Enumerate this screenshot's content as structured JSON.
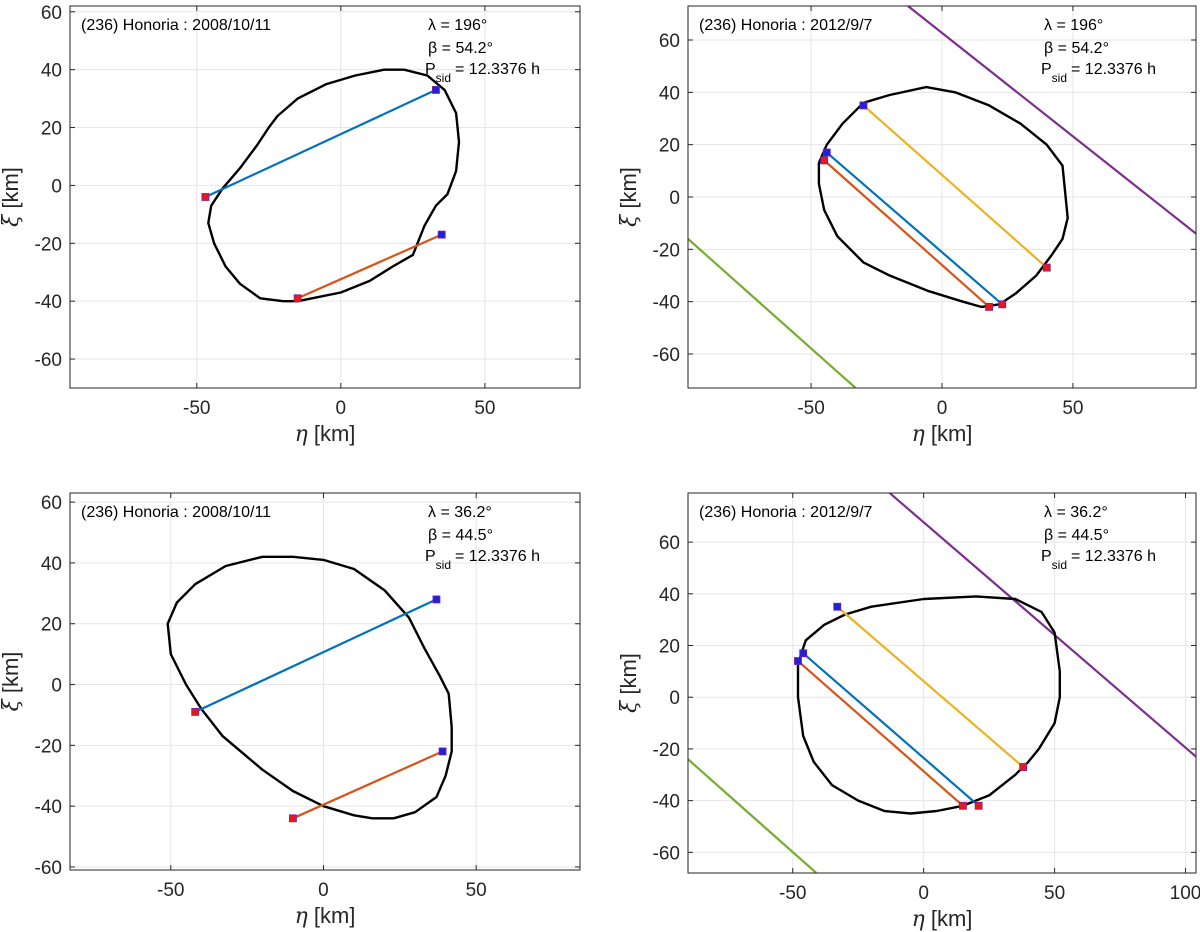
{
  "chart_data": [
    {
      "type": "scatter",
      "title": "(236) Honoria : 2008/10/11",
      "pole": {
        "lambda": "λ = 196°",
        "beta": "β = 54.2°",
        "psid_p": "P",
        "psid_sub": "sid",
        "psid_val": "= 12.3376 h"
      },
      "xlabel_sym": "η",
      "xlabel_unit": " [km]",
      "ylabel_sym": "ξ",
      "ylabel_unit": " [km]",
      "xlim": [
        -94,
        83
      ],
      "ylim": [
        -70,
        62
      ],
      "xticks": [
        -50,
        0,
        50
      ],
      "xtick_labels": [
        "-50",
        "0",
        "50"
      ],
      "yticks": [
        -60,
        -40,
        -20,
        0,
        20,
        40,
        60
      ],
      "ytick_labels": [
        "-60",
        "-40",
        "-20",
        "0",
        "20",
        "40",
        "60"
      ],
      "grid": true,
      "outline": [
        [
          -25,
          20
        ],
        [
          -22,
          24
        ],
        [
          -15,
          30
        ],
        [
          -5,
          35
        ],
        [
          5,
          38
        ],
        [
          15,
          40
        ],
        [
          22,
          40
        ],
        [
          30,
          38
        ],
        [
          36,
          33
        ],
        [
          40,
          25
        ],
        [
          41,
          15
        ],
        [
          40,
          5
        ],
        [
          37,
          -3
        ],
        [
          33,
          -7
        ],
        [
          29,
          -14
        ],
        [
          25,
          -24
        ],
        [
          18,
          -28
        ],
        [
          10,
          -33
        ],
        [
          0,
          -37
        ],
        [
          -10,
          -39
        ],
        [
          -15,
          -40
        ],
        [
          -20,
          -40
        ],
        [
          -28,
          -39
        ],
        [
          -35,
          -34
        ],
        [
          -40,
          -28
        ],
        [
          -44,
          -20
        ],
        [
          -46,
          -13
        ],
        [
          -45,
          -7
        ],
        [
          -41,
          -1
        ],
        [
          -35,
          6
        ],
        [
          -29,
          14
        ],
        [
          -25,
          20
        ]
      ],
      "chords": [
        {
          "color": "#0072bd",
          "start": [
            -47,
            -4
          ],
          "end": [
            33,
            33
          ],
          "start_marker": "red",
          "end_marker": "blue"
        },
        {
          "color": "#d95319",
          "start": [
            -15,
            -39
          ],
          "end": [
            35,
            -17
          ],
          "start_marker": "red",
          "end_marker": "blue"
        }
      ],
      "negative_lines": []
    },
    {
      "type": "scatter",
      "title": "(236) Honoria : 2012/9/7",
      "pole": {
        "lambda": "λ = 196°",
        "beta": "β = 54.2°",
        "psid_p": "P",
        "psid_sub": "sid",
        "psid_val": "= 12.3376 h"
      },
      "xlabel_sym": "η",
      "xlabel_unit": " [km]",
      "ylabel_sym": "ξ",
      "ylabel_unit": " [km]",
      "xlim": [
        -97,
        97
      ],
      "ylim": [
        -73,
        73
      ],
      "xticks": [
        -50,
        0,
        50
      ],
      "xtick_labels": [
        "-50",
        "0",
        "50"
      ],
      "yticks": [
        -60,
        -40,
        -20,
        0,
        20,
        40,
        60
      ],
      "ytick_labels": [
        "-60",
        "-40",
        "-20",
        "0",
        "20",
        "40",
        "60"
      ],
      "grid": true,
      "outline": [
        [
          -30,
          36
        ],
        [
          -20,
          39
        ],
        [
          -6,
          42
        ],
        [
          5,
          40
        ],
        [
          18,
          35
        ],
        [
          30,
          28
        ],
        [
          40,
          20
        ],
        [
          46,
          12
        ],
        [
          48,
          -8
        ],
        [
          46,
          -16
        ],
        [
          42,
          -22
        ],
        [
          36,
          -30
        ],
        [
          28,
          -37
        ],
        [
          22,
          -41
        ],
        [
          15,
          -42
        ],
        [
          8,
          -40
        ],
        [
          -5,
          -36
        ],
        [
          -20,
          -30
        ],
        [
          -30,
          -25
        ],
        [
          -40,
          -15
        ],
        [
          -45,
          -5
        ],
        [
          -47,
          5
        ],
        [
          -47,
          13
        ],
        [
          -44,
          20
        ],
        [
          -38,
          28
        ],
        [
          -30,
          36
        ]
      ],
      "chords": [
        {
          "color": "#0072bd",
          "start": [
            -44,
            17
          ],
          "end": [
            23,
            -41
          ],
          "start_marker": "blue",
          "end_marker": "red"
        },
        {
          "color": "#d95319",
          "start": [
            -45,
            14
          ],
          "end": [
            18,
            -42
          ],
          "start_marker": "red",
          "end_marker": "red"
        },
        {
          "color": "#edb120",
          "start": [
            -30,
            35
          ],
          "end": [
            40,
            -27
          ],
          "start_marker": "blue",
          "end_marker": "red"
        }
      ],
      "negative_lines": [
        {
          "color": "#7e2f8e",
          "start": [
            -13,
            73
          ],
          "end": [
            97,
            -14
          ]
        },
        {
          "color": "#77ac30",
          "start": [
            -97,
            -16
          ],
          "end": [
            -33,
            -73
          ]
        }
      ]
    },
    {
      "type": "scatter",
      "title": "(236) Honoria : 2008/10/11",
      "pole": {
        "lambda": "λ = 36.2°",
        "beta": "β = 44.5°",
        "psid_p": "P",
        "psid_sub": "sid",
        "psid_val": "= 12.3376 h"
      },
      "xlabel_sym": "η",
      "xlabel_unit": " [km]",
      "ylabel_sym": "ξ",
      "ylabel_unit": " [km]",
      "xlim": [
        -83,
        84
      ],
      "ylim": [
        -61,
        63
      ],
      "xticks": [
        -50,
        0,
        50
      ],
      "xtick_labels": [
        "-50",
        "0",
        "50"
      ],
      "yticks": [
        -60,
        -40,
        -20,
        0,
        20,
        40,
        60
      ],
      "ytick_labels": [
        "-60",
        "-40",
        "-20",
        "0",
        "20",
        "40",
        "60"
      ],
      "grid": true,
      "outline": [
        [
          -20,
          42
        ],
        [
          -10,
          42
        ],
        [
          0,
          41
        ],
        [
          10,
          38
        ],
        [
          20,
          31
        ],
        [
          28,
          22
        ],
        [
          33,
          12
        ],
        [
          38,
          3
        ],
        [
          41,
          -3
        ],
        [
          42,
          -14
        ],
        [
          42,
          -22
        ],
        [
          40,
          -30
        ],
        [
          37,
          -37
        ],
        [
          30,
          -42
        ],
        [
          23,
          -44
        ],
        [
          16,
          -44
        ],
        [
          10,
          -43
        ],
        [
          0,
          -40
        ],
        [
          -10,
          -35
        ],
        [
          -20,
          -28
        ],
        [
          -33,
          -17
        ],
        [
          -40,
          -8
        ],
        [
          -45,
          0
        ],
        [
          -50,
          10
        ],
        [
          -51,
          20
        ],
        [
          -48,
          27
        ],
        [
          -42,
          33
        ],
        [
          -32,
          39
        ],
        [
          -20,
          42
        ]
      ],
      "chords": [
        {
          "color": "#0072bd",
          "start": [
            -42,
            -9
          ],
          "end": [
            37,
            28
          ],
          "start_marker": "red",
          "end_marker": "blue"
        },
        {
          "color": "#d95319",
          "start": [
            -10,
            -44
          ],
          "end": [
            39,
            -22
          ],
          "start_marker": "red",
          "end_marker": "blue"
        }
      ],
      "negative_lines": []
    },
    {
      "type": "scatter",
      "title": "(236) Honoria : 2012/9/7",
      "pole": {
        "lambda": "λ = 36.2°",
        "beta": "β = 44.5°",
        "psid_p": "P",
        "psid_sub": "sid",
        "psid_val": "= 12.3376 h"
      },
      "xlabel_sym": "η",
      "xlabel_unit": " [km]",
      "ylabel_sym": "ξ",
      "ylabel_unit": " [km]",
      "xlim": [
        -90,
        104
      ],
      "ylim": [
        -68,
        79
      ],
      "xticks": [
        -50,
        0,
        50,
        100
      ],
      "xtick_labels": [
        "-50",
        "0",
        "50",
        "100"
      ],
      "yticks": [
        -60,
        -40,
        -20,
        0,
        20,
        40,
        60
      ],
      "ytick_labels": [
        "-60",
        "-40",
        "-20",
        "0",
        "20",
        "40",
        "60"
      ],
      "grid": true,
      "outline": [
        [
          -20,
          35
        ],
        [
          0,
          38
        ],
        [
          20,
          39
        ],
        [
          35,
          38
        ],
        [
          45,
          33
        ],
        [
          50,
          25
        ],
        [
          52,
          10
        ],
        [
          52,
          0
        ],
        [
          50,
          -10
        ],
        [
          44,
          -20
        ],
        [
          40,
          -25
        ],
        [
          35,
          -30
        ],
        [
          25,
          -38
        ],
        [
          15,
          -42
        ],
        [
          5,
          -44
        ],
        [
          -5,
          -45
        ],
        [
          -15,
          -44
        ],
        [
          -25,
          -40
        ],
        [
          -35,
          -34
        ],
        [
          -42,
          -25
        ],
        [
          -46,
          -15
        ],
        [
          -48,
          0
        ],
        [
          -48,
          13
        ],
        [
          -45,
          22
        ],
        [
          -38,
          28
        ],
        [
          -30,
          32
        ],
        [
          -20,
          35
        ]
      ],
      "chords": [
        {
          "color": "#0072bd",
          "start": [
            -46,
            17
          ],
          "end": [
            21,
            -42
          ],
          "start_marker": "blue",
          "end_marker": "red"
        },
        {
          "color": "#d95319",
          "start": [
            -48,
            14
          ],
          "end": [
            15,
            -42
          ],
          "start_marker": "blue",
          "end_marker": "red"
        },
        {
          "color": "#edb120",
          "start": [
            -33,
            35
          ],
          "end": [
            38,
            -27
          ],
          "start_marker": "blue",
          "end_marker": "red"
        }
      ],
      "negative_lines": [
        {
          "color": "#7e2f8e",
          "start": [
            -13,
            79
          ],
          "end": [
            104,
            -23
          ]
        },
        {
          "color": "#77ac30",
          "start": [
            -90,
            -24
          ],
          "end": [
            -41,
            -68
          ]
        }
      ]
    }
  ]
}
